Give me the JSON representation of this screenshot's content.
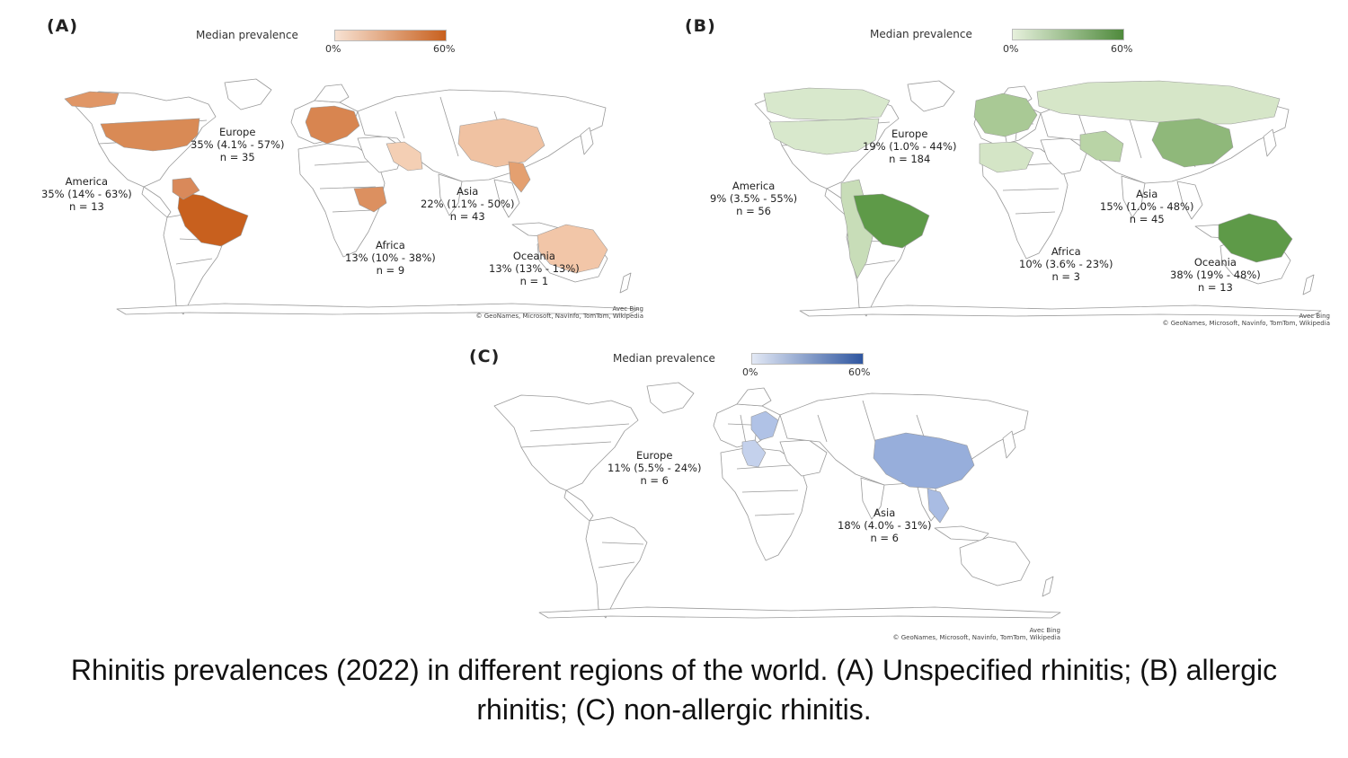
{
  "caption": "Rhinitis prevalences (2022) in different regions of the world. (A) Unspecified rhinitis; (B) allergic rhinitis; (C) non-allergic rhinitis.",
  "attribution": {
    "line1": "Avec Bing",
    "line2": "© GeoNames, Microsoft, Navinfo, TomTom, Wikipedia"
  },
  "panels": [
    {
      "id": "A",
      "label": "(A)",
      "legend": {
        "title": "Median prevalence",
        "min": "0%",
        "max": "60%",
        "color_low": "#f7e2d3",
        "color_high": "#c8601e"
      },
      "regions": {
        "europe": {
          "name": "Europe",
          "stat": "35% (4.1% - 57%)",
          "n": "n = 35"
        },
        "america": {
          "name": "America",
          "stat": "35% (14% - 63%)",
          "n": "n = 13"
        },
        "asia": {
          "name": "Asia",
          "stat": "22% (1.1% - 50%)",
          "n": "n = 43"
        },
        "africa": {
          "name": "Africa",
          "stat": "13% (10% - 38%)",
          "n": "n = 9"
        },
        "oceania": {
          "name": "Oceania",
          "stat": "13% (13% - 13%)",
          "n": "n = 1"
        }
      }
    },
    {
      "id": "B",
      "label": "(B)",
      "legend": {
        "title": "Median prevalence",
        "min": "0%",
        "max": "60%",
        "color_low": "#e6f0dc",
        "color_high": "#4f8a3c"
      },
      "regions": {
        "europe": {
          "name": "Europe",
          "stat": "19% (1.0% - 44%)",
          "n": "n = 184"
        },
        "america": {
          "name": "America",
          "stat": "9% (3.5% - 55%)",
          "n": "n = 56"
        },
        "asia": {
          "name": "Asia",
          "stat": "15% (1.0% - 48%)",
          "n": "n = 45"
        },
        "africa": {
          "name": "Africa",
          "stat": "10% (3.6% - 23%)",
          "n": "n = 3"
        },
        "oceania": {
          "name": "Oceania",
          "stat": "38% (19% - 48%)",
          "n": "n = 13"
        }
      }
    },
    {
      "id": "C",
      "label": "(C)",
      "legend": {
        "title": "Median prevalence",
        "min": "0%",
        "max": "60%",
        "color_low": "#e3e9f5",
        "color_high": "#2f56a0"
      },
      "regions": {
        "europe": {
          "name": "Europe",
          "stat": "11% (5.5% - 24%)",
          "n": "n = 6"
        },
        "asia": {
          "name": "Asia",
          "stat": "18% (4.0% - 31%)",
          "n": "n = 6"
        }
      }
    }
  ],
  "map_colors": {
    "A": {
      "usa": "#d98a55",
      "brazil": "#c8601e",
      "southam": "#d9895a",
      "europe": "#d88550",
      "china": "#f0c2a2",
      "australia": "#f2c6a8",
      "india": "#f4cfb4",
      "africa": "#dc9060",
      "greenland": "#e09666",
      "sea": "#e4a070"
    },
    "B": {
      "usa": "#d8e8cc",
      "canada": "#d8e8cc",
      "brazil": "#5e9a48",
      "southam": "#c8ddb8",
      "europe": "#a9c995",
      "china": "#8fb87a",
      "russia": "#d6e6c8",
      "australia": "#5e9a48",
      "africa": "#d4e5c6",
      "asia": "#b9d4a6"
    },
    "C": {
      "china": "#97aedb",
      "scandinavia": "#b0c2e6",
      "europe": "#c4d1ec",
      "sea": "#a9bce3"
    }
  }
}
